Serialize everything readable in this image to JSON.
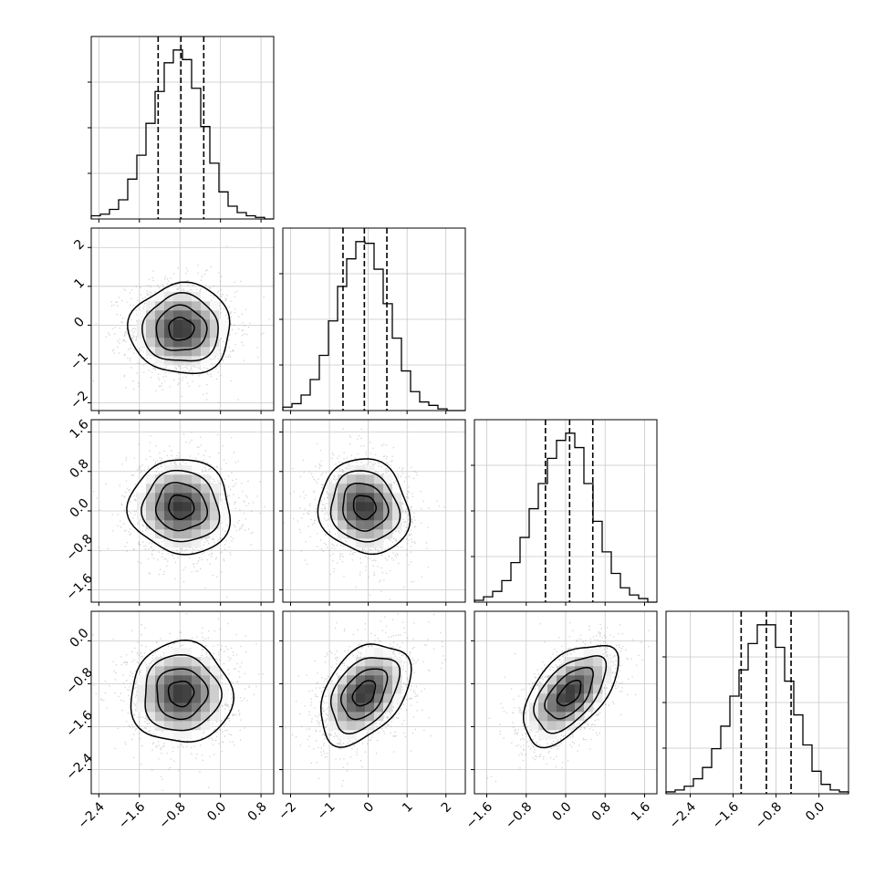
{
  "chart_data": {
    "type": "corner",
    "grid": true,
    "scatter_color": "#808080",
    "contour_color": "#000000",
    "hist_color": "#000000",
    "variables": [
      {
        "median": -0.78,
        "q16": -1.23,
        "q84": -0.33,
        "std": 0.5,
        "xlim": [
          -2.55,
          1.05
        ],
        "ticks": [
          -2.4,
          -1.6,
          -0.8,
          0.0,
          0.8
        ],
        "tick_labels": [
          "−2.4",
          "−1.6",
          "−0.8",
          "0.0",
          "0.8"
        ],
        "hist_bins": [
          -2.55,
          -2.37,
          -2.19,
          -2.01,
          -1.83,
          -1.65,
          -1.47,
          -1.29,
          -1.11,
          -0.93,
          -0.75,
          -0.57,
          -0.39,
          -0.21,
          -0.03,
          0.15,
          0.33,
          0.51,
          0.69,
          0.87,
          1.05
        ],
        "hist_counts": [
          2,
          3,
          6,
          12,
          25,
          40,
          60,
          80,
          98,
          106,
          100,
          82,
          58,
          35,
          17,
          8,
          4,
          2,
          1,
          0
        ]
      },
      {
        "median": -0.1,
        "q16": -0.65,
        "q84": 0.48,
        "std": 0.58,
        "xlim": [
          -2.2,
          2.5
        ],
        "ticks": [
          -2,
          -1,
          0,
          1,
          2
        ],
        "tick_labels": [
          "−2",
          "−1",
          "0",
          "1",
          "2"
        ],
        "hist_bins": [
          -2.2,
          -1.965,
          -1.73,
          -1.495,
          -1.26,
          -1.025,
          -0.79,
          -0.555,
          -0.32,
          -0.085,
          0.15,
          0.385,
          0.62,
          0.855,
          1.09,
          1.325,
          1.56,
          1.795,
          2.03,
          2.265,
          2.5
        ],
        "hist_counts": [
          2,
          4,
          9,
          18,
          32,
          52,
          72,
          88,
          98,
          97,
          82,
          62,
          42,
          23,
          11,
          5,
          3,
          1,
          0,
          0
        ]
      },
      {
        "median": 0.08,
        "q16": -0.41,
        "q84": 0.55,
        "std": 0.48,
        "xlim": [
          -1.85,
          1.85
        ],
        "ticks": [
          -1.6,
          -0.8,
          0.0,
          0.8,
          1.6
        ],
        "tick_labels": [
          "−1.6",
          "−0.8",
          "0.0",
          "0.8",
          "1.6"
        ],
        "hist_bins": [
          -1.85,
          -1.665,
          -1.48,
          -1.295,
          -1.11,
          -0.925,
          -0.74,
          -0.555,
          -0.37,
          -0.185,
          0.0,
          0.185,
          0.37,
          0.555,
          0.74,
          0.925,
          1.11,
          1.295,
          1.48,
          1.665,
          1.85
        ],
        "hist_counts": [
          1,
          3,
          6,
          12,
          22,
          36,
          52,
          66,
          80,
          90,
          94,
          86,
          66,
          45,
          28,
          16,
          8,
          4,
          2,
          0
        ]
      },
      {
        "median": -0.98,
        "q16": -1.45,
        "q84": -0.52,
        "std": 0.47,
        "xlim": [
          -2.85,
          0.55
        ],
        "ticks": [
          -2.4,
          -1.6,
          -0.8,
          0.0
        ],
        "tick_labels": [
          "−2.4",
          "−1.6",
          "−0.8",
          "0.0"
        ],
        "hist_bins": [
          -2.85,
          -2.68,
          -2.51,
          -2.34,
          -2.17,
          -2.0,
          -1.83,
          -1.66,
          -1.49,
          -1.32,
          -1.15,
          -0.98,
          -0.81,
          -0.64,
          -0.47,
          -0.3,
          -0.13,
          0.04,
          0.21,
          0.38,
          0.55
        ],
        "hist_counts": [
          1,
          2,
          4,
          8,
          14,
          24,
          36,
          52,
          66,
          80,
          90,
          90,
          78,
          60,
          42,
          26,
          12,
          5,
          2,
          1
        ]
      }
    ],
    "correlations": [
      {
        "i": 1,
        "j": 0,
        "rho": 0.0
      },
      {
        "i": 2,
        "j": 0,
        "rho": -0.05
      },
      {
        "i": 2,
        "j": 1,
        "rho": -0.1
      },
      {
        "i": 3,
        "j": 0,
        "rho": 0.0
      },
      {
        "i": 3,
        "j": 1,
        "rho": 0.4
      },
      {
        "i": 3,
        "j": 2,
        "rho": 0.55
      }
    ]
  }
}
